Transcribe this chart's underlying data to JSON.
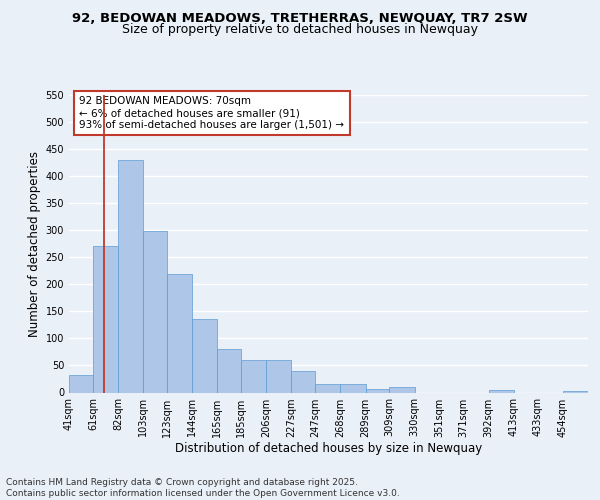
{
  "title_line1": "92, BEDOWAN MEADOWS, TRETHERRAS, NEWQUAY, TR7 2SW",
  "title_line2": "Size of property relative to detached houses in Newquay",
  "xlabel": "Distribution of detached houses by size in Newquay",
  "ylabel": "Number of detached properties",
  "bin_labels": [
    "41sqm",
    "61sqm",
    "82sqm",
    "103sqm",
    "123sqm",
    "144sqm",
    "165sqm",
    "185sqm",
    "206sqm",
    "227sqm",
    "247sqm",
    "268sqm",
    "289sqm",
    "309sqm",
    "330sqm",
    "351sqm",
    "371sqm",
    "392sqm",
    "413sqm",
    "433sqm",
    "454sqm"
  ],
  "bin_edges": [
    41,
    61,
    82,
    103,
    123,
    144,
    165,
    185,
    206,
    227,
    247,
    268,
    289,
    309,
    330,
    351,
    371,
    392,
    413,
    433,
    454
  ],
  "bar_heights": [
    32,
    270,
    430,
    298,
    220,
    135,
    80,
    60,
    60,
    40,
    15,
    16,
    7,
    10,
    0,
    0,
    0,
    5,
    0,
    0,
    3
  ],
  "bar_color": "#aec6e8",
  "bar_edge_color": "#5b9bd5",
  "vline_x": 70,
  "vline_color": "#c0392b",
  "ylim": [
    0,
    550
  ],
  "yticks": [
    0,
    50,
    100,
    150,
    200,
    250,
    300,
    350,
    400,
    450,
    500,
    550
  ],
  "annotation_text": "92 BEDOWAN MEADOWS: 70sqm\n← 6% of detached houses are smaller (91)\n93% of semi-detached houses are larger (1,501) →",
  "annotation_box_color": "#ffffff",
  "annotation_box_edge": "#c0392b",
  "footer_line1": "Contains HM Land Registry data © Crown copyright and database right 2025.",
  "footer_line2": "Contains public sector information licensed under the Open Government Licence v3.0.",
  "bg_color": "#eaf0f8",
  "plot_bg_color": "#eaf0f8",
  "grid_color": "#ffffff",
  "title_fontsize": 9.5,
  "subtitle_fontsize": 9,
  "axis_label_fontsize": 8.5,
  "tick_fontsize": 7,
  "footer_fontsize": 6.5,
  "annotation_fontsize": 7.5
}
